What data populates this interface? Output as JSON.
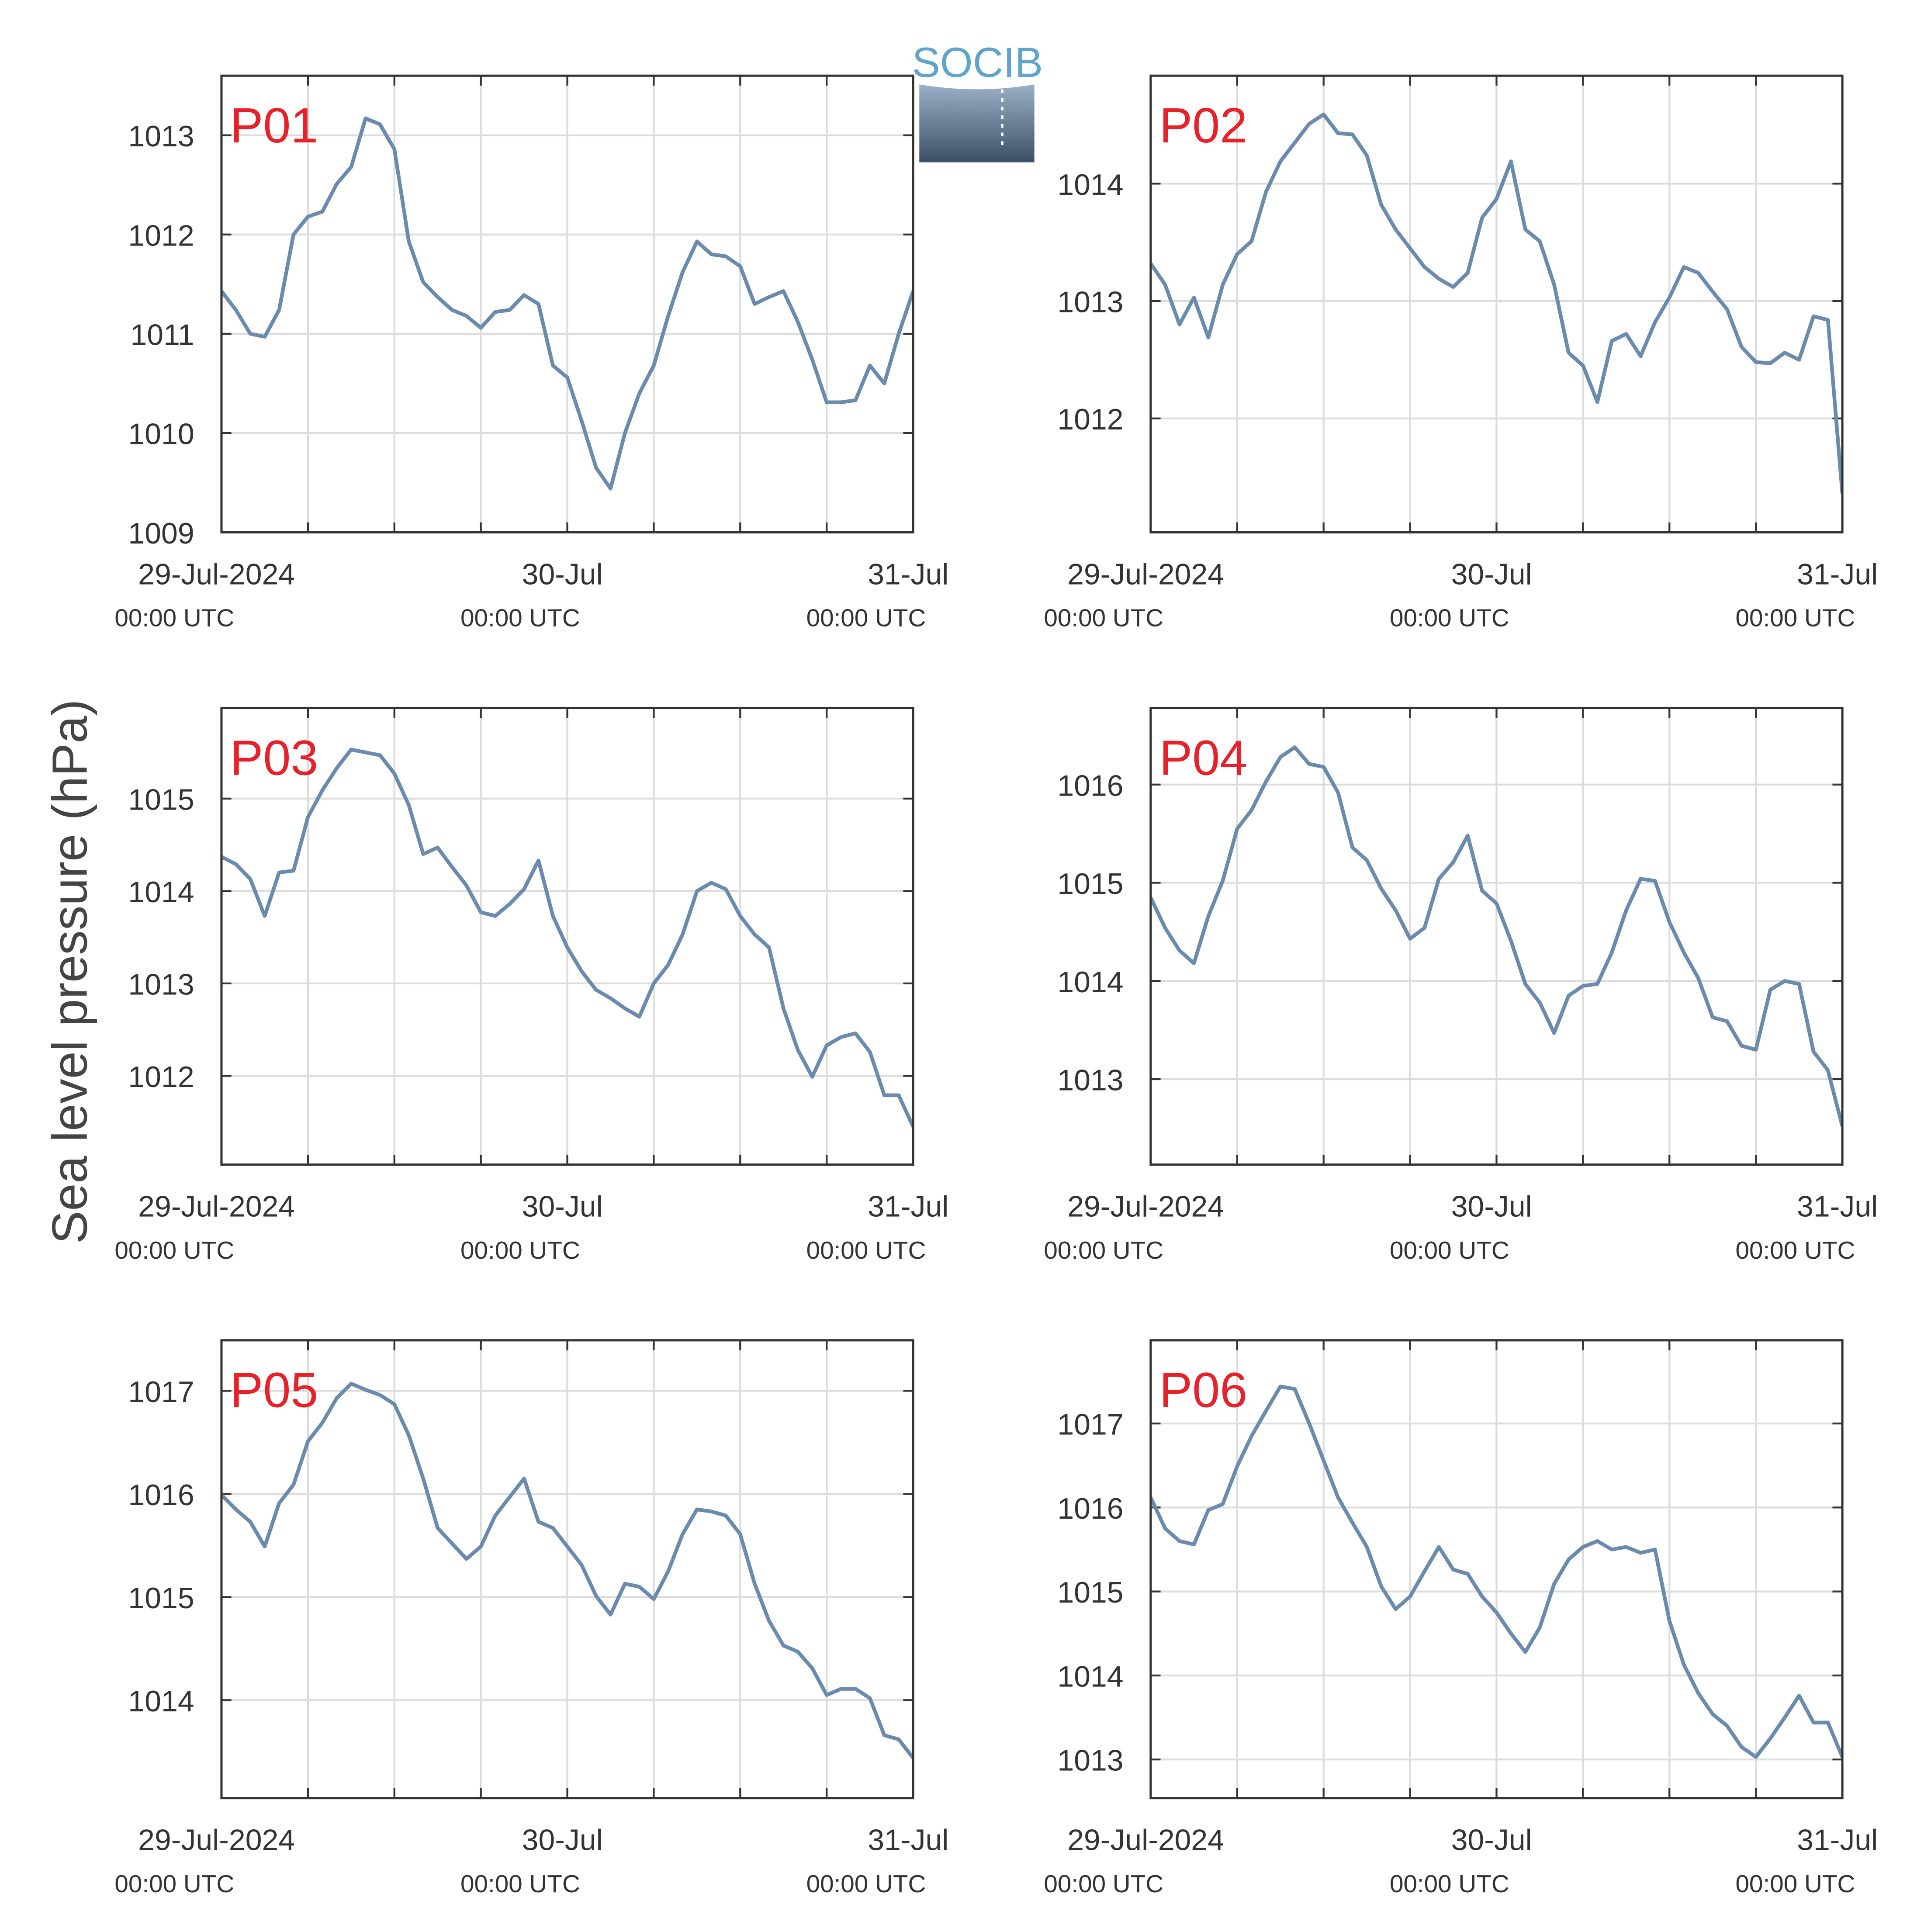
{
  "ylabel": "Sea level pressure (hPa)",
  "logo": "SOCIB",
  "chart_data": [
    {
      "type": "line",
      "title": "P01",
      "grid": true,
      "color": "#6a8bad",
      "x": [
        0,
        1,
        2,
        3,
        4,
        5,
        6,
        7,
        8,
        9,
        10,
        11,
        12,
        13,
        14,
        15,
        16,
        17,
        18,
        19,
        20,
        21,
        22,
        23,
        24,
        25,
        26,
        27,
        28,
        29,
        30,
        31,
        32,
        33,
        34,
        35,
        36,
        37,
        38,
        39,
        40,
        41,
        42,
        43,
        44,
        45,
        46,
        47,
        48
      ],
      "values": [
        1011.43,
        1011.24,
        1011.0,
        1010.97,
        1011.24,
        1012.0,
        1012.18,
        1012.23,
        1012.51,
        1012.68,
        1013.17,
        1013.11,
        1012.86,
        1011.93,
        1011.52,
        1011.37,
        1011.24,
        1011.18,
        1011.06,
        1011.22,
        1011.24,
        1011.39,
        1011.3,
        1010.68,
        1010.56,
        1010.12,
        1009.65,
        1009.44,
        1010.0,
        1010.4,
        1010.68,
        1011.18,
        1011.62,
        1011.93,
        1011.8,
        1011.78,
        1011.68,
        1011.3,
        1011.37,
        1011.43,
        1011.12,
        1010.74,
        1010.31,
        1010.31,
        1010.33,
        1010.68,
        1010.5,
        1011.0,
        1011.43
      ],
      "xlim": [
        0,
        48
      ],
      "xticks": [
        {
          "value": 0,
          "label": "29-Jul-2024",
          "sublabel": "00:00 UTC"
        },
        {
          "value": 6
        },
        {
          "value": 12
        },
        {
          "value": 18
        },
        {
          "value": 24,
          "label": "30-Jul",
          "sublabel": "00:00 UTC"
        },
        {
          "value": 30
        },
        {
          "value": 36
        },
        {
          "value": 42
        },
        {
          "value": 48,
          "label": "31-Jul",
          "sublabel": "00:00 UTC"
        }
      ],
      "ylim": [
        1009,
        1013.6
      ],
      "yticks": [
        1009,
        1010,
        1011,
        1012,
        1013
      ]
    },
    {
      "type": "line",
      "title": "P02",
      "grid": true,
      "color": "#6a8bad",
      "x": [
        0,
        1,
        2,
        3,
        4,
        5,
        6,
        7,
        8,
        9,
        10,
        11,
        12,
        13,
        14,
        15,
        16,
        17,
        18,
        19,
        20,
        21,
        22,
        23,
        24,
        25,
        26,
        27,
        28,
        29,
        30,
        31,
        32,
        33,
        34,
        35,
        36,
        37,
        38,
        39,
        40,
        41,
        42,
        43,
        44,
        45,
        46,
        47,
        48
      ],
      "values": [
        1013.32,
        1013.14,
        1012.8,
        1013.03,
        1012.69,
        1013.14,
        1013.4,
        1013.51,
        1013.93,
        1014.19,
        1014.35,
        1014.51,
        1014.59,
        1014.43,
        1014.42,
        1014.24,
        1013.82,
        1013.61,
        1013.45,
        1013.29,
        1013.19,
        1013.12,
        1013.24,
        1013.71,
        1013.87,
        1014.19,
        1013.61,
        1013.51,
        1013.14,
        1012.56,
        1012.45,
        1012.14,
        1012.66,
        1012.72,
        1012.53,
        1012.82,
        1013.03,
        1013.29,
        1013.24,
        1013.08,
        1012.93,
        1012.61,
        1012.48,
        1012.47,
        1012.56,
        1012.5,
        1012.87,
        1012.84,
        1011.36
      ],
      "xlim": [
        0,
        48
      ],
      "xticks": [
        {
          "value": 0,
          "label": "29-Jul-2024",
          "sublabel": "00:00 UTC"
        },
        {
          "value": 6
        },
        {
          "value": 12
        },
        {
          "value": 18
        },
        {
          "value": 24,
          "label": "30-Jul",
          "sublabel": "00:00 UTC"
        },
        {
          "value": 30
        },
        {
          "value": 36
        },
        {
          "value": 42
        },
        {
          "value": 48,
          "label": "31-Jul",
          "sublabel": "00:00 UTC"
        }
      ],
      "ylim": [
        1011.03,
        1014.92
      ],
      "yticks": [
        1012,
        1013,
        1014
      ]
    },
    {
      "type": "line",
      "title": "P03",
      "grid": true,
      "color": "#6a8bad",
      "x": [
        0,
        1,
        2,
        3,
        4,
        5,
        6,
        7,
        8,
        9,
        10,
        11,
        12,
        13,
        14,
        15,
        16,
        17,
        18,
        19,
        20,
        21,
        22,
        23,
        24,
        25,
        26,
        27,
        28,
        29,
        30,
        31,
        32,
        33,
        34,
        35,
        36,
        37,
        38,
        39,
        40,
        41,
        42,
        43,
        44,
        45,
        46,
        47,
        48
      ],
      "values": [
        1014.37,
        1014.29,
        1014.13,
        1013.73,
        1014.2,
        1014.22,
        1014.8,
        1015.09,
        1015.33,
        1015.53,
        1015.5,
        1015.47,
        1015.27,
        1014.93,
        1014.4,
        1014.47,
        1014.26,
        1014.06,
        1013.77,
        1013.73,
        1013.86,
        1014.02,
        1014.33,
        1013.73,
        1013.39,
        1013.13,
        1012.93,
        1012.84,
        1012.73,
        1012.64,
        1013.0,
        1013.2,
        1013.53,
        1014.0,
        1014.09,
        1014.02,
        1013.73,
        1013.53,
        1013.39,
        1012.73,
        1012.28,
        1011.99,
        1012.33,
        1012.42,
        1012.46,
        1012.26,
        1011.79,
        1011.79,
        1011.45
      ],
      "xlim": [
        0,
        48
      ],
      "xticks": [
        {
          "value": 0,
          "label": "29-Jul-2024",
          "sublabel": "00:00 UTC"
        },
        {
          "value": 6
        },
        {
          "value": 12
        },
        {
          "value": 18
        },
        {
          "value": 24,
          "label": "30-Jul",
          "sublabel": "00:00 UTC"
        },
        {
          "value": 30
        },
        {
          "value": 36
        },
        {
          "value": 42
        },
        {
          "value": 48,
          "label": "31-Jul",
          "sublabel": "00:00 UTC"
        }
      ],
      "ylim": [
        1011.04,
        1015.98
      ],
      "yticks": [
        1012,
        1013,
        1014,
        1015
      ]
    },
    {
      "type": "line",
      "title": "P04",
      "grid": true,
      "color": "#6a8bad",
      "x": [
        0,
        1,
        2,
        3,
        4,
        5,
        6,
        7,
        8,
        9,
        10,
        11,
        12,
        13,
        14,
        15,
        16,
        17,
        18,
        19,
        20,
        21,
        22,
        23,
        24,
        25,
        26,
        27,
        28,
        29,
        30,
        31,
        32,
        33,
        34,
        35,
        36,
        37,
        38,
        39,
        40,
        41,
        42,
        43,
        44,
        45,
        46,
        47,
        48
      ],
      "values": [
        1014.85,
        1014.54,
        1014.31,
        1014.18,
        1014.66,
        1015.02,
        1015.55,
        1015.74,
        1016.03,
        1016.28,
        1016.38,
        1016.21,
        1016.18,
        1015.92,
        1015.36,
        1015.23,
        1014.94,
        1014.72,
        1014.43,
        1014.54,
        1015.04,
        1015.21,
        1015.48,
        1014.92,
        1014.79,
        1014.41,
        1013.97,
        1013.78,
        1013.47,
        1013.85,
        1013.95,
        1013.97,
        1014.29,
        1014.72,
        1015.04,
        1015.02,
        1014.6,
        1014.29,
        1014.03,
        1013.63,
        1013.59,
        1013.34,
        1013.3,
        1013.91,
        1014.0,
        1013.97,
        1013.28,
        1013.09,
        1012.52
      ],
      "xlim": [
        0,
        48
      ],
      "xticks": [
        {
          "value": 0,
          "label": "29-Jul-2024",
          "sublabel": "00:00 UTC"
        },
        {
          "value": 6
        },
        {
          "value": 12
        },
        {
          "value": 18
        },
        {
          "value": 24,
          "label": "30-Jul",
          "sublabel": "00:00 UTC"
        },
        {
          "value": 30
        },
        {
          "value": 36
        },
        {
          "value": 42
        },
        {
          "value": 48,
          "label": "31-Jul",
          "sublabel": "00:00 UTC"
        }
      ],
      "ylim": [
        1012.13,
        1016.78
      ],
      "yticks": [
        1013,
        1014,
        1015,
        1016
      ]
    },
    {
      "type": "line",
      "title": "P05",
      "grid": true,
      "color": "#6a8bad",
      "x": [
        0,
        1,
        2,
        3,
        4,
        5,
        6,
        7,
        8,
        9,
        10,
        11,
        12,
        13,
        14,
        15,
        16,
        17,
        18,
        19,
        20,
        21,
        22,
        23,
        24,
        25,
        26,
        27,
        28,
        29,
        30,
        31,
        32,
        33,
        34,
        35,
        36,
        37,
        38,
        39,
        40,
        41,
        42,
        43,
        44,
        45,
        46,
        47,
        48
      ],
      "values": [
        1015.99,
        1015.85,
        1015.73,
        1015.49,
        1015.91,
        1016.09,
        1016.51,
        1016.69,
        1016.93,
        1017.07,
        1017.01,
        1016.96,
        1016.87,
        1016.57,
        1016.15,
        1015.67,
        1015.52,
        1015.37,
        1015.49,
        1015.79,
        1015.97,
        1016.15,
        1015.73,
        1015.67,
        1015.49,
        1015.31,
        1015.01,
        1014.83,
        1015.13,
        1015.1,
        1014.98,
        1015.25,
        1015.61,
        1015.85,
        1015.83,
        1015.79,
        1015.61,
        1015.13,
        1014.77,
        1014.53,
        1014.47,
        1014.31,
        1014.05,
        1014.11,
        1014.11,
        1014.02,
        1013.66,
        1013.62,
        1013.44
      ],
      "xlim": [
        0,
        48
      ],
      "xticks": [
        {
          "value": 0,
          "label": "29-Jul-2024",
          "sublabel": "00:00 UTC"
        },
        {
          "value": 6
        },
        {
          "value": 12
        },
        {
          "value": 18
        },
        {
          "value": 24,
          "label": "30-Jul",
          "sublabel": "00:00 UTC"
        },
        {
          "value": 30
        },
        {
          "value": 36
        },
        {
          "value": 42
        },
        {
          "value": 48,
          "label": "31-Jul",
          "sublabel": "00:00 UTC"
        }
      ],
      "ylim": [
        1013.05,
        1017.49
      ],
      "yticks": [
        1014,
        1015,
        1016,
        1017
      ]
    },
    {
      "type": "line",
      "title": "P06",
      "grid": true,
      "color": "#6a8bad",
      "x": [
        0,
        1,
        2,
        3,
        4,
        5,
        6,
        7,
        8,
        9,
        10,
        11,
        12,
        13,
        14,
        15,
        16,
        17,
        18,
        19,
        20,
        21,
        22,
        23,
        24,
        25,
        26,
        27,
        28,
        29,
        30,
        31,
        32,
        33,
        34,
        35,
        36,
        37,
        38,
        39,
        40,
        41,
        42,
        43,
        44,
        45,
        46,
        47,
        48
      ],
      "values": [
        1016.12,
        1015.75,
        1015.6,
        1015.56,
        1015.97,
        1016.04,
        1016.49,
        1016.85,
        1017.15,
        1017.44,
        1017.41,
        1017.0,
        1016.56,
        1016.12,
        1015.82,
        1015.53,
        1015.06,
        1014.79,
        1014.94,
        1015.24,
        1015.53,
        1015.26,
        1015.21,
        1014.94,
        1014.75,
        1014.5,
        1014.28,
        1014.57,
        1015.09,
        1015.38,
        1015.53,
        1015.6,
        1015.5,
        1015.53,
        1015.46,
        1015.5,
        1014.65,
        1014.13,
        1013.79,
        1013.54,
        1013.4,
        1013.15,
        1013.03,
        1013.25,
        1013.5,
        1013.76,
        1013.44,
        1013.44,
        1013.03
      ],
      "xlim": [
        0,
        48
      ],
      "xticks": [
        {
          "value": 0,
          "label": "29-Jul-2024",
          "sublabel": "00:00 UTC"
        },
        {
          "value": 6
        },
        {
          "value": 12
        },
        {
          "value": 18
        },
        {
          "value": 24,
          "label": "30-Jul",
          "sublabel": "00:00 UTC"
        },
        {
          "value": 30
        },
        {
          "value": 36
        },
        {
          "value": 42
        },
        {
          "value": 48,
          "label": "31-Jul",
          "sublabel": "00:00 UTC"
        }
      ],
      "ylim": [
        1012.54,
        1017.99
      ],
      "yticks": [
        1013,
        1014,
        1015,
        1016,
        1017
      ]
    }
  ]
}
